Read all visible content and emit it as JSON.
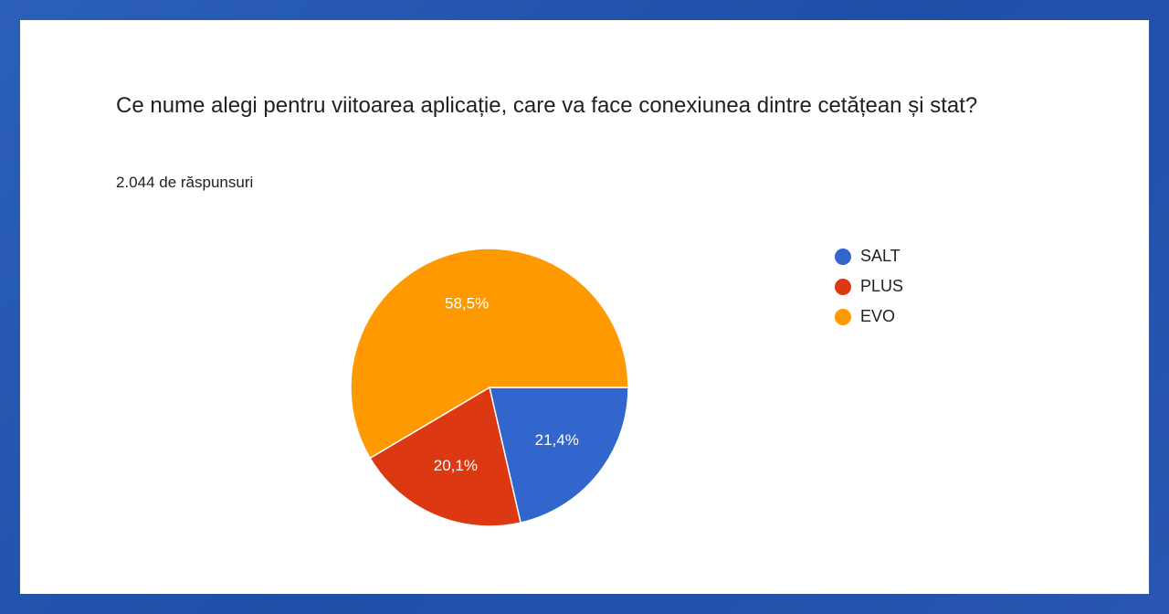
{
  "chart_data": {
    "type": "pie",
    "title": "Ce nume alegi pentru viitoarea aplicație, care va face conexiunea dintre cetățean și stat?",
    "subtitle": "2.044 de răspunsuri",
    "categories": [
      "SALT",
      "PLUS",
      "EVO"
    ],
    "values": [
      21.4,
      20.1,
      58.5
    ],
    "value_labels": [
      "21,4%",
      "20,1%",
      "58,5%"
    ],
    "colors": [
      "#3366cc",
      "#dc3912",
      "#ff9900"
    ],
    "legend": "right"
  }
}
